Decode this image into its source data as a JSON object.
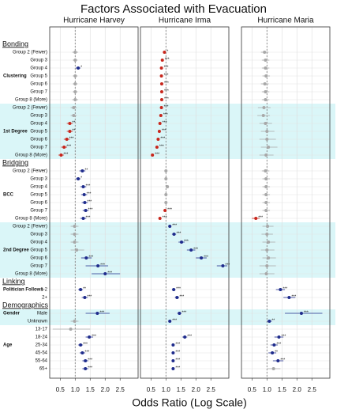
{
  "chart_data": {
    "type": "forest",
    "title": "Factors Associated with Evacuation",
    "x_label": "Odds Ratio (Log Scale)",
    "xlim": [
      0.15,
      3.1
    ],
    "xticks": [
      0.5,
      {
        "value": 1,
        "label": "1.0"
      },
      1.5,
      {
        "value": 2,
        "label": "2.0"
      },
      2.5
    ],
    "reference_line": 1,
    "sig_colors": {
      "lower": "#c8261c",
      "higher": "#1f2c8c",
      "ns": "#a8a8a8"
    },
    "shade_color": "#d4f5f7",
    "sections": [
      {
        "title": "Bonding",
        "groups": [
          {
            "name": "Clustering",
            "shaded": false,
            "rows": [
              "Group 2 (Fewer)",
              "Group 3",
              "Group 4",
              "Group 5",
              "Group 6",
              "Group 7",
              "Group 8 (More)"
            ]
          },
          {
            "name": "1st Degree",
            "shaded": true,
            "rows": [
              "Group 2 (Fewer)",
              "Group 3",
              "Group 4",
              "Group 5",
              "Group 6",
              "Group 7",
              "Group 8 (More)"
            ]
          }
        ]
      },
      {
        "title": "Bridging",
        "groups": [
          {
            "name": "BCC",
            "shaded": false,
            "rows": [
              "Group 2 (Fewer)",
              "Group 3",
              "Group 4",
              "Group 5",
              "Group 6",
              "Group 7",
              "Group 8 (More)"
            ]
          },
          {
            "name": "2nd Degree",
            "shaded": true,
            "rows": [
              "Group 2 (Fewer)",
              "Group 3",
              "Group 4",
              "Group 5",
              "Group 6",
              "Group 7",
              "Group 8 (More)"
            ]
          }
        ]
      },
      {
        "title": "Linking",
        "groups": [
          {
            "name": "Politician Follows",
            "shaded": false,
            "rows": [
              "1-2",
              "2+"
            ]
          }
        ]
      },
      {
        "title": "Demographics",
        "groups": [
          {
            "name": "Gender",
            "shaded": true,
            "rows": [
              "Male",
              "Unknown"
            ]
          },
          {
            "name": "Age",
            "shaded": false,
            "rows": [
              "13-17",
              "18-24",
              "25-34",
              "45-54",
              "55-64",
              "65+"
            ]
          }
        ]
      }
    ],
    "panels": [
      {
        "name": "Hurricane Harvey",
        "values": [
          1.0,
          1.0,
          1.1,
          1.0,
          1.0,
          1.0,
          1.0,
          0.95,
          0.95,
          0.82,
          0.82,
          0.72,
          0.63,
          0.53,
          1.24,
          1.1,
          1.27,
          1.3,
          1.32,
          1.35,
          1.27,
          0.98,
          0.98,
          0.98,
          1.05,
          1.37,
          1.76,
          2.0,
          1.18,
          1.32,
          1.74,
          0.98,
          0.85,
          1.47,
          1.18,
          1.24,
          1.34,
          1.34
        ],
        "lower": [
          0.9,
          0.92,
          1.02,
          0.92,
          0.92,
          0.92,
          0.9,
          0.85,
          0.85,
          0.72,
          0.72,
          0.62,
          0.53,
          0.44,
          1.14,
          1.02,
          1.17,
          1.2,
          1.22,
          1.25,
          1.17,
          0.85,
          0.85,
          0.85,
          0.85,
          1.2,
          1.35,
          1.55,
          1.1,
          1.22,
          1.35,
          0.85,
          0.25,
          1.35,
          1.1,
          1.15,
          1.24,
          1.24
        ],
        "upper": [
          1.1,
          1.08,
          1.18,
          1.08,
          1.08,
          1.08,
          1.1,
          1.05,
          1.05,
          0.92,
          0.92,
          0.82,
          0.73,
          0.62,
          1.34,
          1.18,
          1.37,
          1.4,
          1.42,
          1.45,
          1.37,
          1.11,
          1.11,
          1.11,
          1.3,
          1.55,
          2.1,
          2.5,
          1.26,
          1.42,
          2.15,
          1.11,
          1.5,
          1.6,
          1.26,
          1.33,
          1.44,
          1.44
        ],
        "significance": [
          null,
          null,
          "*",
          null,
          null,
          null,
          null,
          null,
          null,
          "**",
          "**",
          "***",
          "***",
          "***",
          "**",
          "*",
          "***",
          "***",
          "***",
          "***",
          "***",
          null,
          null,
          null,
          null,
          "***",
          "***",
          "***",
          "**",
          "***",
          "***",
          null,
          null,
          "***",
          "***",
          "***",
          "***",
          "***"
        ]
      },
      {
        "name": "Hurricane Irma",
        "values": [
          0.95,
          0.88,
          0.85,
          0.85,
          0.86,
          0.86,
          0.86,
          0.85,
          0.83,
          0.8,
          0.78,
          0.74,
          0.7,
          0.55,
          1.0,
          1.0,
          1.05,
          1.0,
          1.0,
          0.97,
          0.8,
          1.13,
          1.27,
          1.52,
          1.84,
          2.18,
          2.9,
          null,
          1.26,
          1.37,
          1.45,
          1.13,
          null,
          1.63,
          1.24,
          1.24,
          1.24,
          1.24
        ],
        "lower": [
          0.92,
          0.85,
          0.82,
          0.82,
          0.83,
          0.83,
          0.83,
          0.82,
          0.8,
          0.77,
          0.75,
          0.71,
          0.67,
          0.52,
          0.97,
          0.97,
          1.02,
          0.97,
          0.97,
          0.94,
          0.77,
          1.08,
          1.2,
          1.42,
          1.7,
          2.0,
          2.7,
          null,
          1.2,
          1.3,
          1.38,
          1.08,
          null,
          1.55,
          1.2,
          1.2,
          1.2,
          1.2
        ],
        "upper": [
          0.98,
          0.91,
          0.88,
          0.88,
          0.89,
          0.89,
          0.89,
          0.88,
          0.86,
          0.83,
          0.81,
          0.77,
          0.73,
          0.58,
          1.03,
          1.03,
          1.08,
          1.03,
          1.03,
          1.0,
          0.83,
          1.18,
          1.34,
          1.62,
          1.98,
          2.36,
          3.05,
          null,
          1.32,
          1.44,
          1.52,
          1.18,
          null,
          1.71,
          1.28,
          1.28,
          1.28,
          1.28
        ],
        "significance": [
          "*",
          "***",
          "***",
          "***",
          "***",
          "***",
          "***",
          "***",
          "***",
          "***",
          "***",
          "***",
          "***",
          "***",
          null,
          null,
          null,
          null,
          null,
          "***",
          "***",
          "***",
          "***",
          "***",
          "***",
          "***",
          "***",
          null,
          "***",
          "***",
          "***",
          "***",
          null,
          "***",
          "***",
          "***",
          "***",
          "***"
        ]
      },
      {
        "name": "Hurricane Maria",
        "values": [
          0.92,
          0.95,
          0.95,
          0.97,
          0.93,
          0.95,
          0.95,
          0.9,
          0.88,
          0.95,
          1.0,
          1.0,
          1.05,
          0.97,
          0.95,
          0.97,
          0.97,
          0.97,
          0.97,
          0.97,
          0.63,
          1.02,
          1.0,
          1.05,
          1.0,
          1.05,
          1.0,
          0.98,
          1.45,
          1.74,
          2.15,
          1.08,
          null,
          1.4,
          1.24,
          1.18,
          1.37,
          1.22
        ],
        "lower": [
          0.8,
          0.83,
          0.83,
          0.85,
          0.8,
          0.83,
          0.83,
          0.7,
          0.68,
          0.75,
          0.8,
          0.75,
          0.8,
          0.75,
          0.83,
          0.85,
          0.85,
          0.85,
          0.85,
          0.85,
          0.5,
          0.85,
          0.82,
          0.85,
          0.8,
          0.85,
          0.75,
          0.75,
          1.3,
          1.55,
          1.6,
          1.0,
          null,
          1.25,
          1.12,
          1.05,
          1.2,
          1.0
        ],
        "upper": [
          1.05,
          1.08,
          1.08,
          1.1,
          1.06,
          1.08,
          1.08,
          1.12,
          1.1,
          1.17,
          1.25,
          1.3,
          1.35,
          1.22,
          1.08,
          1.1,
          1.1,
          1.1,
          1.1,
          1.1,
          0.76,
          1.22,
          1.2,
          1.28,
          1.25,
          1.3,
          1.3,
          1.25,
          1.6,
          1.95,
          2.85,
          1.16,
          null,
          1.55,
          1.36,
          1.31,
          1.55,
          1.45
        ],
        "significance": [
          null,
          null,
          null,
          null,
          null,
          null,
          null,
          null,
          null,
          null,
          null,
          null,
          null,
          null,
          null,
          null,
          null,
          null,
          null,
          null,
          "***",
          null,
          null,
          null,
          null,
          null,
          null,
          null,
          "***",
          "***",
          "***",
          "**",
          null,
          "***",
          "***",
          "**",
          "***",
          null
        ]
      }
    ]
  }
}
